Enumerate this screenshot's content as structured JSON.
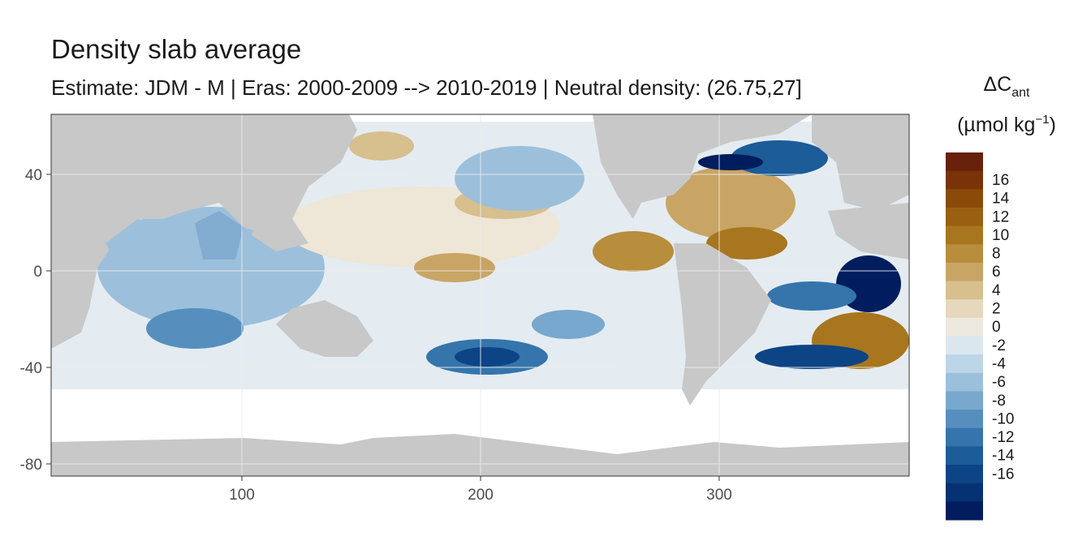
{
  "chart_data": {
    "type": "heatmap",
    "title": "Density slab average",
    "subtitle": "Estimate: JDM - M | Eras: 2000-2009 --> 2010-2019 | Neutral density: (26.75,27]",
    "xlabel": "",
    "ylabel": "",
    "xlim": [
      20,
      380
    ],
    "ylim": [
      -85,
      65
    ],
    "x_ticks": [
      "100",
      "200",
      "300"
    ],
    "x_tick_values": [
      100,
      200,
      300
    ],
    "y_ticks": [
      "40",
      "0",
      "-40",
      "-80"
    ],
    "y_tick_values": [
      40,
      0,
      -40,
      -80
    ],
    "grid": true,
    "land_color": "#c8c8c8",
    "nodata_color": "#ffffff",
    "legend": {
      "title_main": "ΔC",
      "title_sub": "ant",
      "title_unit_pre": "(µmol kg",
      "title_unit_sup": "−1",
      "title_unit_post": ")",
      "placement": "right",
      "bins": [
        {
          "label": "16",
          "color": "#67200a"
        },
        {
          "label": "",
          "color": "#7a3208"
        },
        {
          "label": "14",
          "color": "#8a4a08"
        },
        {
          "label": "",
          "color": "#996010"
        },
        {
          "label": "12",
          "color": "#a7761c"
        },
        {
          "label": "",
          "color": "#b48b38"
        },
        {
          "label": "10",
          "color": "#c19f5c"
        },
        {
          "label": "",
          "color": "#ceb584"
        },
        {
          "label": "8",
          "color": "#dccaa6"
        },
        {
          "label": "",
          "color": "#e6dcc5"
        },
        {
          "label": "6",
          "color": "#eee8dc"
        },
        {
          "label": "",
          "color": "#dde7ef"
        },
        {
          "label": "4",
          "color": "#c2d8e8"
        },
        {
          "label": "",
          "color": "#a3c3dc"
        },
        {
          "label": "2",
          "color": "#82acd0"
        },
        {
          "label": "",
          "color": "#5f94c1"
        },
        {
          "label": "0",
          "color": "#3d7aaf"
        },
        {
          "label": "",
          "color": "#23629d"
        }
      ],
      "tick_labels": [
        "16",
        "14",
        "12",
        "10",
        "8",
        "6",
        "4",
        "2",
        "0",
        "-2",
        "-4",
        "-6",
        "-8",
        "-10",
        "-12",
        "-14",
        "-16"
      ],
      "colors": [
        "#67200a",
        "#7a3208",
        "#8a4a08",
        "#9a5f10",
        "#a8761e",
        "#b88d3c",
        "#c8a564",
        "#d7bf8e",
        "#e6d8bc",
        "#eee9e0",
        "#dbe7ef",
        "#bcd5e7",
        "#9cc0db",
        "#78a8cd",
        "#568fbe",
        "#3575ac",
        "#1b5c99",
        "#0c4486",
        "#063173",
        "#021d5e"
      ]
    },
    "values_note": "",
    "features": [
      {
        "lon": 330,
        "lat": 45,
        "value": -16
      },
      {
        "lon": 365,
        "lat": 0,
        "value": -16
      },
      {
        "lon": 330,
        "lat": -42,
        "value": -14
      },
      {
        "lon": 200,
        "lat": -38,
        "value": -12
      },
      {
        "lon": 80,
        "lat": -25,
        "value": -8
      },
      {
        "lon": 275,
        "lat": 10,
        "value": 8
      },
      {
        "lon": 360,
        "lat": -30,
        "value": 10
      },
      {
        "lon": 170,
        "lat": 50,
        "value": 6
      }
    ]
  }
}
